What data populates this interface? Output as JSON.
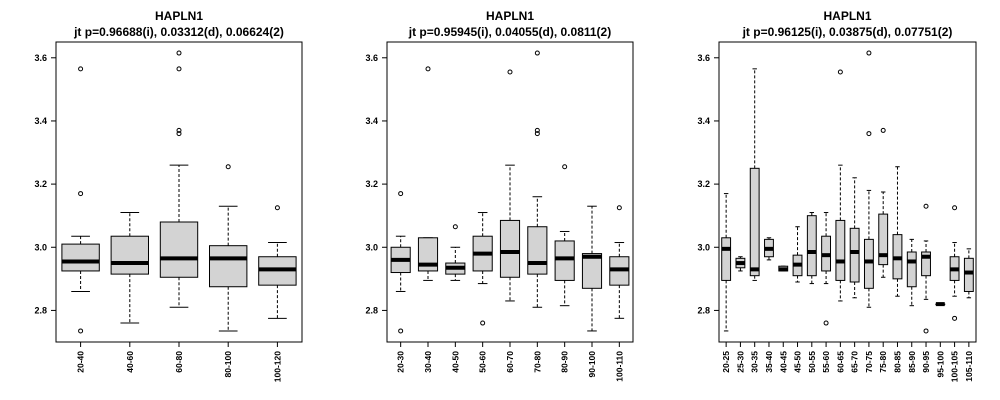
{
  "chart_data": [
    {
      "type": "boxplot",
      "title": "HAPLN1",
      "subtitle": "jt p=0.96688(i), 0.03312(d), 0.06624(2)",
      "xlabel": "",
      "ylabel": "",
      "ylim": [
        2.7,
        3.65
      ],
      "yticks": [
        "2.8",
        "3.0",
        "3.2",
        "3.4",
        "3.6"
      ],
      "grid": false,
      "categories": [
        "20-40",
        "40-60",
        "60-80",
        "80-100",
        "100-120"
      ],
      "boxes": [
        {
          "whisker_low": 2.86,
          "q1": 2.925,
          "median": 2.955,
          "q3": 3.01,
          "whisker_high": 3.035,
          "outliers": [
            3.565,
            3.17,
            2.735
          ]
        },
        {
          "whisker_low": 2.76,
          "q1": 2.915,
          "median": 2.95,
          "q3": 3.035,
          "whisker_high": 3.11,
          "outliers": []
        },
        {
          "whisker_low": 2.81,
          "q1": 2.905,
          "median": 2.965,
          "q3": 3.08,
          "whisker_high": 3.26,
          "outliers": [
            3.615,
            3.565,
            3.37,
            3.36
          ]
        },
        {
          "whisker_low": 2.735,
          "q1": 2.875,
          "median": 2.965,
          "q3": 3.005,
          "whisker_high": 3.13,
          "outliers": [
            3.255
          ]
        },
        {
          "whisker_low": 2.775,
          "q1": 2.88,
          "median": 2.93,
          "q3": 2.97,
          "whisker_high": 3.015,
          "outliers": [
            3.125
          ]
        }
      ]
    },
    {
      "type": "boxplot",
      "title": "HAPLN1",
      "subtitle": "jt p=0.95945(i), 0.04055(d), 0.0811(2)",
      "xlabel": "",
      "ylabel": "",
      "ylim": [
        2.7,
        3.65
      ],
      "yticks": [
        "2.8",
        "3.0",
        "3.2",
        "3.4",
        "3.6"
      ],
      "grid": false,
      "categories": [
        "20-30",
        "30-40",
        "40-50",
        "50-60",
        "60-70",
        "70-80",
        "80-90",
        "90-100",
        "100-110"
      ],
      "boxes": [
        {
          "whisker_low": 2.86,
          "q1": 2.92,
          "median": 2.96,
          "q3": 3.0,
          "whisker_high": 3.035,
          "outliers": [
            3.17,
            2.735
          ]
        },
        {
          "whisker_low": 2.895,
          "q1": 2.925,
          "median": 2.945,
          "q3": 3.03,
          "whisker_high": 3.03,
          "outliers": [
            3.565
          ]
        },
        {
          "whisker_low": 2.895,
          "q1": 2.915,
          "median": 2.935,
          "q3": 2.95,
          "whisker_high": 3.0,
          "outliers": [
            3.065
          ]
        },
        {
          "whisker_low": 2.885,
          "q1": 2.925,
          "median": 2.98,
          "q3": 3.035,
          "whisker_high": 3.11,
          "outliers": [
            2.76
          ]
        },
        {
          "whisker_low": 2.83,
          "q1": 2.905,
          "median": 2.985,
          "q3": 3.085,
          "whisker_high": 3.26,
          "outliers": [
            3.555
          ]
        },
        {
          "whisker_low": 2.81,
          "q1": 2.915,
          "median": 2.95,
          "q3": 3.065,
          "whisker_high": 3.16,
          "outliers": [
            3.615,
            3.37,
            3.36
          ]
        },
        {
          "whisker_low": 2.815,
          "q1": 2.895,
          "median": 2.965,
          "q3": 3.02,
          "whisker_high": 3.05,
          "outliers": [
            3.255
          ]
        },
        {
          "whisker_low": 2.735,
          "q1": 2.87,
          "median": 2.97,
          "q3": 2.98,
          "whisker_high": 3.13,
          "outliers": []
        },
        {
          "whisker_low": 2.775,
          "q1": 2.88,
          "median": 2.93,
          "q3": 2.97,
          "whisker_high": 3.015,
          "outliers": [
            3.125
          ]
        }
      ]
    },
    {
      "type": "boxplot",
      "title": "HAPLN1",
      "subtitle": "jt p=0.96125(i), 0.03875(d), 0.07751(2)",
      "xlabel": "",
      "ylabel": "",
      "ylim": [
        2.7,
        3.65
      ],
      "yticks": [
        "2.8",
        "3.0",
        "3.2",
        "3.4",
        "3.6"
      ],
      "grid": false,
      "categories": [
        "20-25",
        "25-30",
        "30-35",
        "35-40",
        "40-45",
        "45-50",
        "50-55",
        "55-60",
        "60-65",
        "65-70",
        "70-75",
        "75-80",
        "80-85",
        "85-90",
        "90-95",
        "95-100",
        "100-105",
        "105-110"
      ],
      "boxes": [
        {
          "whisker_low": 2.735,
          "q1": 2.895,
          "median": 2.995,
          "q3": 3.03,
          "whisker_high": 3.17,
          "outliers": []
        },
        {
          "whisker_low": 2.925,
          "q1": 2.935,
          "median": 2.95,
          "q3": 2.965,
          "whisker_high": 2.97,
          "outliers": []
        },
        {
          "whisker_low": 2.895,
          "q1": 2.91,
          "median": 2.93,
          "q3": 3.25,
          "whisker_high": 3.565,
          "outliers": []
        },
        {
          "whisker_low": 2.96,
          "q1": 2.97,
          "median": 2.995,
          "q3": 3.025,
          "whisker_high": 3.03,
          "outliers": []
        },
        {
          "whisker_low": 2.925,
          "q1": 2.925,
          "median": 2.93,
          "q3": 2.94,
          "whisker_high": 2.94,
          "outliers": []
        },
        {
          "whisker_low": 2.89,
          "q1": 2.91,
          "median": 2.945,
          "q3": 2.975,
          "whisker_high": 3.065,
          "outliers": []
        },
        {
          "whisker_low": 2.885,
          "q1": 2.91,
          "median": 2.985,
          "q3": 3.1,
          "whisker_high": 3.11,
          "outliers": []
        },
        {
          "whisker_low": 2.885,
          "q1": 2.925,
          "median": 2.975,
          "q3": 3.035,
          "whisker_high": 3.11,
          "outliers": [
            2.76
          ]
        },
        {
          "whisker_low": 2.83,
          "q1": 2.895,
          "median": 2.955,
          "q3": 3.085,
          "whisker_high": 3.26,
          "outliers": [
            3.555
          ]
        },
        {
          "whisker_low": 2.84,
          "q1": 2.89,
          "median": 2.985,
          "q3": 3.06,
          "whisker_high": 3.22,
          "outliers": []
        },
        {
          "whisker_low": 2.81,
          "q1": 2.87,
          "median": 2.955,
          "q3": 3.025,
          "whisker_high": 3.18,
          "outliers": [
            3.615,
            3.36
          ]
        },
        {
          "whisker_low": 2.905,
          "q1": 2.945,
          "median": 2.975,
          "q3": 3.105,
          "whisker_high": 3.175,
          "outliers": [
            3.37
          ]
        },
        {
          "whisker_low": 2.845,
          "q1": 2.9,
          "median": 2.965,
          "q3": 3.04,
          "whisker_high": 3.255,
          "outliers": []
        },
        {
          "whisker_low": 2.815,
          "q1": 2.875,
          "median": 2.955,
          "q3": 2.985,
          "whisker_high": 3.025,
          "outliers": []
        },
        {
          "whisker_low": 2.835,
          "q1": 2.91,
          "median": 2.97,
          "q3": 2.985,
          "whisker_high": 3.02,
          "outliers": [
            3.13,
            2.735
          ]
        },
        {
          "whisker_low": 2.82,
          "q1": 2.82,
          "median": 2.82,
          "q3": 2.82,
          "whisker_high": 2.82,
          "outliers": []
        },
        {
          "whisker_low": 2.845,
          "q1": 2.895,
          "median": 2.93,
          "q3": 2.97,
          "whisker_high": 3.015,
          "outliers": [
            3.125,
            2.775
          ]
        },
        {
          "whisker_low": 2.84,
          "q1": 2.86,
          "median": 2.92,
          "q3": 2.965,
          "whisker_high": 2.995,
          "outliers": []
        }
      ]
    }
  ]
}
